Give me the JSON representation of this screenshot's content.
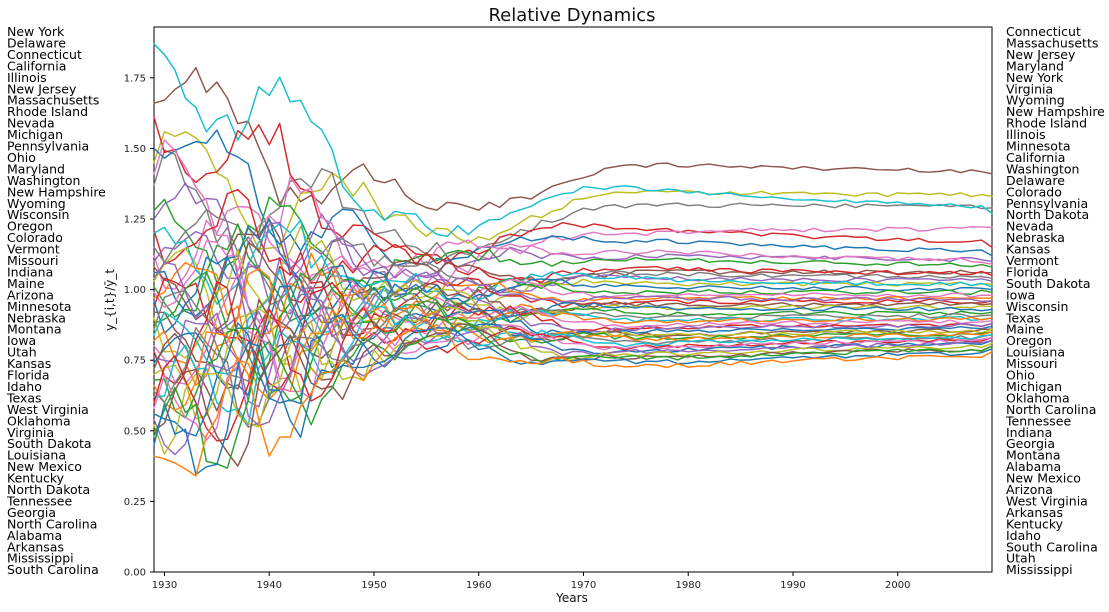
{
  "chart_data": {
    "type": "line",
    "title": "Relative Dynamics",
    "xlabel": "Years",
    "ylabel": "y_{i,t}/ȳ_t",
    "xlim": [
      1929,
      2009
    ],
    "ylim": [
      0.0,
      1.93
    ],
    "x_ticks": [
      1930,
      1940,
      1950,
      1960,
      1970,
      1980,
      1990,
      2000
    ],
    "y_ticks": [
      0.0,
      0.25,
      0.5,
      0.75,
      1.0,
      1.25,
      1.5,
      1.75
    ],
    "x_tick_labels": [
      "1930",
      "1940",
      "1950",
      "1960",
      "1970",
      "1980",
      "1990",
      "2000"
    ],
    "y_tick_labels": [
      "0.00",
      "0.25",
      "0.50",
      "0.75",
      "1.00",
      "1.25",
      "1.50",
      "1.75"
    ],
    "grid": false,
    "left_labels": [
      "New York",
      "Delaware",
      "Connecticut",
      "California",
      "Illinois",
      "New Jersey",
      "Massachusetts",
      "Rhode Island",
      "Nevada",
      "Michigan",
      "Pennsylvania",
      "Ohio",
      "Maryland",
      "Washington",
      "New Hampshire",
      "Wyoming",
      "Wisconsin",
      "Oregon",
      "Colorado",
      "Vermont",
      "Missouri",
      "Indiana",
      "Maine",
      "Arizona",
      "Minnesota",
      "Nebraska",
      "Montana",
      "Iowa",
      "Utah",
      "Kansas",
      "Florida",
      "Idaho",
      "Texas",
      "West Virginia",
      "Oklahoma",
      "Virginia",
      "South Dakota",
      "Louisiana",
      "New Mexico",
      "Kentucky",
      "North Dakota",
      "Tennessee",
      "Georgia",
      "North Carolina",
      "Alabama",
      "Arkansas",
      "Mississippi",
      "South Carolina"
    ],
    "right_labels": [
      "Connecticut",
      "Massachusetts",
      "New Jersey",
      "Maryland",
      "New York",
      "Virginia",
      "Wyoming",
      "New Hampshire",
      "Rhode Island",
      "Illinois",
      "Minnesota",
      "California",
      "Washington",
      "Delaware",
      "Colorado",
      "Pennsylvania",
      "North Dakota",
      "Nevada",
      "Nebraska",
      "Kansas",
      "Vermont",
      "Florida",
      "South Dakota",
      "Iowa",
      "Wisconsin",
      "Texas",
      "Maine",
      "Oregon",
      "Louisiana",
      "Missouri",
      "Ohio",
      "Michigan",
      "Oklahoma",
      "North Carolina",
      "Tennessee",
      "Indiana",
      "Georgia",
      "Montana",
      "Alabama",
      "New Mexico",
      "Arizona",
      "West Virginia",
      "Arkansas",
      "Kentucky",
      "Idaho",
      "South Carolina",
      "Utah",
      "Mississippi"
    ],
    "palette": [
      "#1f77b4",
      "#ff7f0e",
      "#2ca02c",
      "#d62728",
      "#9467bd",
      "#8c564b",
      "#e377c2",
      "#7f7f7f",
      "#bcbd22",
      "#17becf"
    ],
    "series": [
      {
        "start": 1.66,
        "end": 1.41,
        "color": "#8c564b"
      },
      {
        "start": 1.45,
        "end": 1.33,
        "color": "#bcbd22"
      },
      {
        "start": 1.37,
        "end": 1.29,
        "color": "#7f7f7f"
      },
      {
        "start": 1.87,
        "end": 1.27,
        "color": "#17becf"
      },
      {
        "start": 1.61,
        "end": 1.15,
        "color": "#d62728"
      },
      {
        "start": 1.12,
        "end": 1.22,
        "color": "#e377c2"
      },
      {
        "start": 1.5,
        "end": 1.12,
        "color": "#1f77b4"
      },
      {
        "start": 1.25,
        "end": 1.1,
        "color": "#9467bd"
      },
      {
        "start": 1.41,
        "end": 1.09,
        "color": "#e377c2"
      },
      {
        "start": 1.28,
        "end": 1.08,
        "color": "#2ca02c"
      },
      {
        "start": 1.08,
        "end": 1.06,
        "color": "#8c564b"
      },
      {
        "start": 1.21,
        "end": 1.05,
        "color": "#d62728"
      },
      {
        "start": 1.15,
        "end": 1.04,
        "color": "#7f7f7f"
      },
      {
        "start": 1.1,
        "end": 1.03,
        "color": "#9467bd"
      },
      {
        "start": 1.03,
        "end": 1.02,
        "color": "#bcbd22"
      },
      {
        "start": 1.2,
        "end": 1.01,
        "color": "#17becf"
      },
      {
        "start": 1.06,
        "end": 1.0,
        "color": "#1f77b4"
      },
      {
        "start": 1.01,
        "end": 0.99,
        "color": "#2ca02c"
      },
      {
        "start": 0.99,
        "end": 0.98,
        "color": "#e377c2"
      },
      {
        "start": 0.97,
        "end": 0.97,
        "color": "#ff7f0e"
      },
      {
        "start": 0.94,
        "end": 0.96,
        "color": "#d62728"
      },
      {
        "start": 1.04,
        "end": 0.96,
        "color": "#9467bd"
      },
      {
        "start": 0.92,
        "end": 0.95,
        "color": "#8c564b"
      },
      {
        "start": 0.9,
        "end": 0.94,
        "color": "#bcbd22"
      },
      {
        "start": 0.96,
        "end": 0.93,
        "color": "#1f77b4"
      },
      {
        "start": 0.88,
        "end": 0.92,
        "color": "#2ca02c"
      },
      {
        "start": 0.86,
        "end": 0.91,
        "color": "#7f7f7f"
      },
      {
        "start": 0.84,
        "end": 0.9,
        "color": "#17becf"
      },
      {
        "start": 0.82,
        "end": 0.9,
        "color": "#ff7f0e"
      },
      {
        "start": 0.8,
        "end": 0.89,
        "color": "#e377c2"
      },
      {
        "start": 0.78,
        "end": 0.88,
        "color": "#d62728"
      },
      {
        "start": 0.76,
        "end": 0.88,
        "color": "#9467bd"
      },
      {
        "start": 0.74,
        "end": 0.87,
        "color": "#1f77b4"
      },
      {
        "start": 0.72,
        "end": 0.86,
        "color": "#8c564b"
      },
      {
        "start": 0.7,
        "end": 0.86,
        "color": "#bcbd22"
      },
      {
        "start": 0.68,
        "end": 0.85,
        "color": "#2ca02c"
      },
      {
        "start": 0.66,
        "end": 0.85,
        "color": "#ff7f0e"
      },
      {
        "start": 0.64,
        "end": 0.84,
        "color": "#7f7f7f"
      },
      {
        "start": 0.62,
        "end": 0.84,
        "color": "#17becf"
      },
      {
        "start": 0.6,
        "end": 0.83,
        "color": "#d62728"
      },
      {
        "start": 0.58,
        "end": 0.83,
        "color": "#e377c2"
      },
      {
        "start": 0.56,
        "end": 0.82,
        "color": "#1f77b4"
      },
      {
        "start": 0.54,
        "end": 0.82,
        "color": "#9467bd"
      },
      {
        "start": 0.52,
        "end": 0.81,
        "color": "#bcbd22"
      },
      {
        "start": 0.5,
        "end": 0.8,
        "color": "#8c564b"
      },
      {
        "start": 0.48,
        "end": 0.8,
        "color": "#2ca02c"
      },
      {
        "start": 0.45,
        "end": 0.79,
        "color": "#1f77b4"
      },
      {
        "start": 0.41,
        "end": 0.78,
        "color": "#ff7f0e"
      }
    ]
  }
}
